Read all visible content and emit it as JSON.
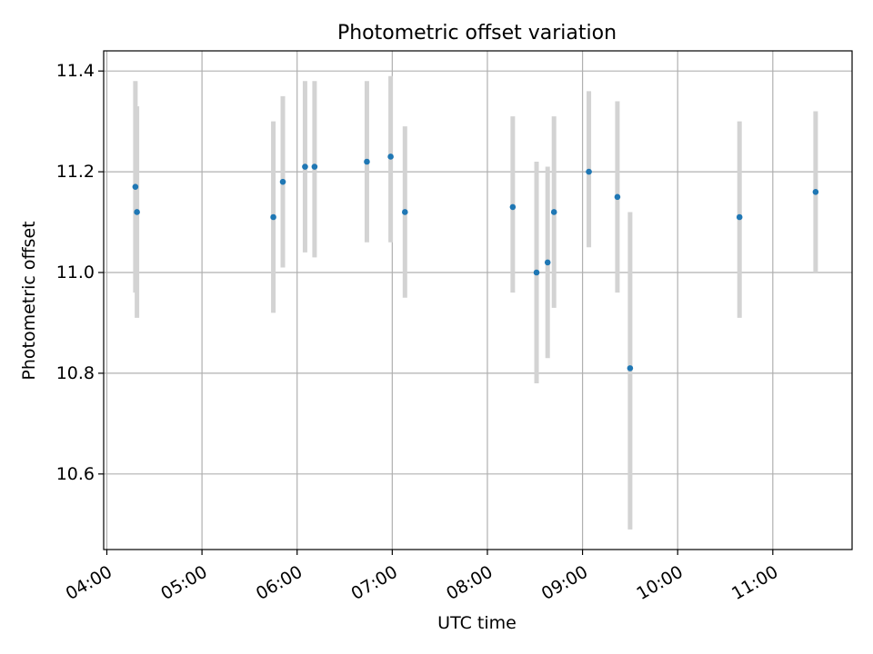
{
  "chart_data": {
    "type": "scatter",
    "title": "Photometric offset variation",
    "xlabel": "UTC time",
    "ylabel": "Photometric offset",
    "x_ticks": [
      "04:00",
      "05:00",
      "06:00",
      "07:00",
      "08:00",
      "09:00",
      "10:00",
      "11:00"
    ],
    "y_ticks": [
      "10.6",
      "10.8",
      "11.0",
      "11.2",
      "11.4"
    ],
    "xlim": [
      "03:58",
      "11:50"
    ],
    "ylim": [
      10.45,
      11.44
    ],
    "grid": true,
    "points": [
      {
        "x": "04:18",
        "y": 11.17,
        "yerr_low": 10.96,
        "yerr_high": 11.38
      },
      {
        "x": "04:19",
        "y": 11.12,
        "yerr_low": 10.91,
        "yerr_high": 11.33
      },
      {
        "x": "05:45",
        "y": 11.11,
        "yerr_low": 10.92,
        "yerr_high": 11.3
      },
      {
        "x": "05:51",
        "y": 11.18,
        "yerr_low": 11.01,
        "yerr_high": 11.35
      },
      {
        "x": "06:05",
        "y": 11.21,
        "yerr_low": 11.04,
        "yerr_high": 11.38
      },
      {
        "x": "06:11",
        "y": 11.21,
        "yerr_low": 11.03,
        "yerr_high": 11.38
      },
      {
        "x": "06:44",
        "y": 11.22,
        "yerr_low": 11.06,
        "yerr_high": 11.38
      },
      {
        "x": "06:59",
        "y": 11.23,
        "yerr_low": 11.06,
        "yerr_high": 11.39
      },
      {
        "x": "07:08",
        "y": 11.12,
        "yerr_low": 10.95,
        "yerr_high": 11.29
      },
      {
        "x": "08:16",
        "y": 11.13,
        "yerr_low": 10.96,
        "yerr_high": 11.31
      },
      {
        "x": "08:31",
        "y": 11.0,
        "yerr_low": 10.78,
        "yerr_high": 11.22
      },
      {
        "x": "08:38",
        "y": 11.02,
        "yerr_low": 10.83,
        "yerr_high": 11.21
      },
      {
        "x": "08:42",
        "y": 11.12,
        "yerr_low": 10.93,
        "yerr_high": 11.31
      },
      {
        "x": "09:04",
        "y": 11.2,
        "yerr_low": 11.05,
        "yerr_high": 11.36
      },
      {
        "x": "09:22",
        "y": 11.15,
        "yerr_low": 10.96,
        "yerr_high": 11.34
      },
      {
        "x": "09:30",
        "y": 10.81,
        "yerr_low": 10.49,
        "yerr_high": 11.12
      },
      {
        "x": "10:39",
        "y": 11.11,
        "yerr_low": 10.91,
        "yerr_high": 11.3
      },
      {
        "x": "11:27",
        "y": 11.16,
        "yerr_low": 11.0,
        "yerr_high": 11.32
      }
    ],
    "colors": {
      "marker": "#1f77b4",
      "errorbar": "#d3d3d3",
      "grid": "#b0b0b0",
      "axes": "#000000"
    }
  }
}
